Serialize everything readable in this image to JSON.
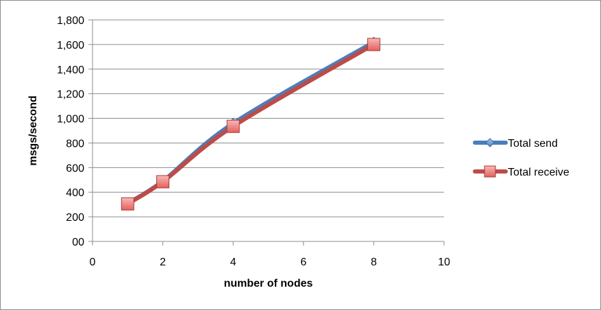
{
  "chart_data": {
    "type": "line",
    "title": "",
    "xlabel": "number of nodes",
    "ylabel": "msgs/second",
    "xlim": [
      0,
      10
    ],
    "ylim": [
      0,
      1800
    ],
    "x_ticks": [
      0,
      2,
      4,
      6,
      8,
      10
    ],
    "y_ticks": [
      0,
      200,
      400,
      600,
      800,
      1000,
      1200,
      1400,
      1600,
      1800
    ],
    "x_tick_labels": [
      "0",
      "2",
      "4",
      "6",
      "8",
      "10"
    ],
    "y_tick_labels": [
      "00",
      "200",
      "400",
      "600",
      "800",
      "1,000",
      "1,200",
      "1,400",
      "1,600",
      "1,800"
    ],
    "grid": "horizontal",
    "legend_position": "right",
    "series": [
      {
        "name": "Total send",
        "marker": "diamond",
        "color": "#4a7ebb",
        "x": [
          1,
          2,
          4,
          8
        ],
        "y": [
          310,
          490,
          960,
          1620
        ]
      },
      {
        "name": "Total receive",
        "marker": "square",
        "color": "#be4b48",
        "x": [
          1,
          2,
          4,
          8
        ],
        "y": [
          305,
          485,
          935,
          1600
        ]
      }
    ]
  }
}
